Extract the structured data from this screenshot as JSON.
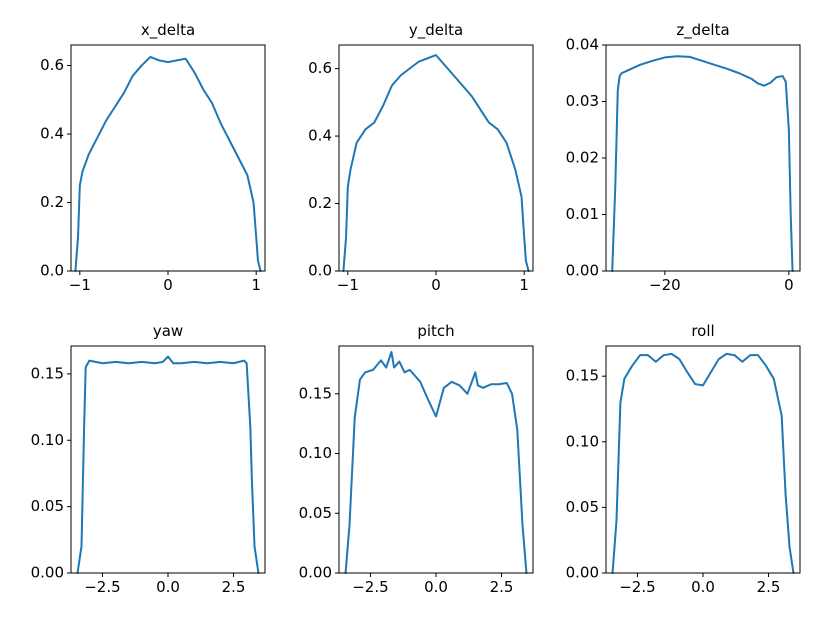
{
  "chart_data": [
    {
      "type": "line",
      "title": "x_delta",
      "xlim": [
        -1.1,
        1.1
      ],
      "ylim": [
        0.0,
        0.66
      ],
      "xticks": [
        -1,
        0,
        1
      ],
      "xtick_labels": [
        "−1",
        "0",
        "1"
      ],
      "yticks": [
        0.0,
        0.2,
        0.4,
        0.6
      ],
      "ytick_labels": [
        "0.0",
        "0.2",
        "0.4",
        "0.6"
      ],
      "color": "#1f77b4",
      "series": [
        {
          "x": [
            -1.05,
            -1.02,
            -1.0,
            -0.97,
            -0.9,
            -0.8,
            -0.7,
            -0.6,
            -0.5,
            -0.4,
            -0.3,
            -0.2,
            -0.1,
            0.0,
            0.1,
            0.2,
            0.3,
            0.4,
            0.5,
            0.6,
            0.7,
            0.8,
            0.9,
            0.97,
            1.0,
            1.02,
            1.05
          ],
          "y": [
            0.0,
            0.1,
            0.25,
            0.29,
            0.34,
            0.39,
            0.44,
            0.48,
            0.52,
            0.57,
            0.6,
            0.625,
            0.615,
            0.61,
            0.615,
            0.62,
            0.58,
            0.53,
            0.49,
            0.43,
            0.38,
            0.33,
            0.28,
            0.2,
            0.1,
            0.03,
            0.0
          ]
        }
      ]
    },
    {
      "type": "line",
      "title": "y_delta",
      "xlim": [
        -1.1,
        1.1
      ],
      "ylim": [
        0.0,
        0.67
      ],
      "xticks": [
        -1,
        0,
        1
      ],
      "xtick_labels": [
        "−1",
        "0",
        "1"
      ],
      "yticks": [
        0.0,
        0.2,
        0.4,
        0.6
      ],
      "ytick_labels": [
        "0.0",
        "0.2",
        "0.4",
        "0.6"
      ],
      "color": "#1f77b4",
      "series": [
        {
          "x": [
            -1.05,
            -1.02,
            -1.0,
            -0.97,
            -0.9,
            -0.8,
            -0.7,
            -0.6,
            -0.5,
            -0.4,
            -0.3,
            -0.2,
            -0.1,
            0.0,
            0.1,
            0.2,
            0.3,
            0.4,
            0.5,
            0.6,
            0.7,
            0.8,
            0.9,
            0.97,
            1.0,
            1.02,
            1.05
          ],
          "y": [
            0.0,
            0.1,
            0.25,
            0.3,
            0.38,
            0.42,
            0.44,
            0.49,
            0.55,
            0.58,
            0.6,
            0.62,
            0.63,
            0.64,
            0.61,
            0.58,
            0.55,
            0.52,
            0.48,
            0.44,
            0.42,
            0.38,
            0.3,
            0.22,
            0.1,
            0.03,
            0.0
          ]
        }
      ]
    },
    {
      "type": "line",
      "title": "z_delta",
      "xlim": [
        -29.5,
        1.8
      ],
      "ylim": [
        0.0,
        0.04
      ],
      "xticks": [
        -20,
        0
      ],
      "xtick_labels": [
        "−20",
        "0"
      ],
      "yticks": [
        0.0,
        0.01,
        0.02,
        0.03,
        0.04
      ],
      "ytick_labels": [
        "0.00",
        "0.01",
        "0.02",
        "0.03",
        "0.04"
      ],
      "color": "#1f77b4",
      "series": [
        {
          "x": [
            -28.5,
            -28.0,
            -27.6,
            -27.3,
            -27.0,
            -26.0,
            -24.0,
            -22.0,
            -20.0,
            -18.0,
            -16.0,
            -14.0,
            -12.0,
            -10.0,
            -8.0,
            -6.0,
            -5.0,
            -4.0,
            -3.0,
            -2.0,
            -1.0,
            -0.5,
            0.0,
            0.3,
            0.6
          ],
          "y": [
            0.0,
            0.015,
            0.032,
            0.0345,
            0.035,
            0.0355,
            0.0365,
            0.0372,
            0.0378,
            0.038,
            0.0379,
            0.0372,
            0.0365,
            0.0358,
            0.035,
            0.034,
            0.0332,
            0.0328,
            0.0333,
            0.0343,
            0.0345,
            0.0335,
            0.025,
            0.01,
            0.0
          ]
        }
      ]
    },
    {
      "type": "line",
      "title": "yaw",
      "xlim": [
        -3.7,
        3.7
      ],
      "ylim": [
        0.0,
        0.171
      ],
      "xticks": [
        -2.5,
        0.0,
        2.5
      ],
      "xtick_labels": [
        "−2.5",
        "0.0",
        "2.5"
      ],
      "yticks": [
        0.0,
        0.05,
        0.1,
        0.15
      ],
      "ytick_labels": [
        "0.00",
        "0.05",
        "0.10",
        "0.15"
      ],
      "color": "#1f77b4",
      "series": [
        {
          "x": [
            -3.45,
            -3.3,
            -3.2,
            -3.14,
            -3.0,
            -2.5,
            -2.0,
            -1.5,
            -1.0,
            -0.5,
            -0.2,
            0.0,
            0.2,
            0.5,
            1.0,
            1.5,
            2.0,
            2.5,
            2.9,
            3.0,
            3.14,
            3.2,
            3.3,
            3.45
          ],
          "y": [
            0.0,
            0.02,
            0.11,
            0.155,
            0.16,
            0.158,
            0.159,
            0.158,
            0.159,
            0.158,
            0.159,
            0.163,
            0.158,
            0.158,
            0.159,
            0.158,
            0.159,
            0.158,
            0.16,
            0.158,
            0.11,
            0.07,
            0.02,
            0.0
          ]
        }
      ]
    },
    {
      "type": "line",
      "title": "pitch",
      "xlim": [
        -3.7,
        3.7
      ],
      "ylim": [
        0.0,
        0.19
      ],
      "xticks": [
        -2.5,
        0.0,
        2.5
      ],
      "xtick_labels": [
        "−2.5",
        "0.0",
        "2.5"
      ],
      "yticks": [
        0.0,
        0.05,
        0.1,
        0.15
      ],
      "ytick_labels": [
        "0.00",
        "0.05",
        "0.10",
        "0.15"
      ],
      "color": "#1f77b4",
      "series": [
        {
          "x": [
            -3.45,
            -3.3,
            -3.1,
            -2.9,
            -2.7,
            -2.4,
            -2.1,
            -1.9,
            -1.7,
            -1.6,
            -1.4,
            -1.2,
            -1.0,
            -0.6,
            -0.3,
            0.0,
            0.3,
            0.6,
            0.9,
            1.2,
            1.5,
            1.6,
            1.8,
            2.1,
            2.4,
            2.7,
            2.9,
            3.1,
            3.3,
            3.45
          ],
          "y": [
            0.0,
            0.04,
            0.13,
            0.162,
            0.168,
            0.17,
            0.178,
            0.172,
            0.185,
            0.172,
            0.177,
            0.168,
            0.17,
            0.16,
            0.145,
            0.131,
            0.155,
            0.16,
            0.157,
            0.15,
            0.168,
            0.157,
            0.155,
            0.158,
            0.158,
            0.159,
            0.15,
            0.12,
            0.04,
            0.0
          ]
        }
      ]
    },
    {
      "type": "line",
      "title": "roll",
      "xlim": [
        -3.7,
        3.7
      ],
      "ylim": [
        0.0,
        0.173
      ],
      "xticks": [
        -2.5,
        0.0,
        2.5
      ],
      "xtick_labels": [
        "−2.5",
        "0.0",
        "2.5"
      ],
      "yticks": [
        0.0,
        0.05,
        0.1,
        0.15
      ],
      "ytick_labels": [
        "0.00",
        "0.05",
        "0.10",
        "0.15"
      ],
      "color": "#1f77b4",
      "series": [
        {
          "x": [
            -3.45,
            -3.3,
            -3.15,
            -3.0,
            -2.7,
            -2.4,
            -2.1,
            -1.8,
            -1.5,
            -1.2,
            -0.9,
            -0.6,
            -0.3,
            0.0,
            0.3,
            0.6,
            0.9,
            1.2,
            1.5,
            1.8,
            2.1,
            2.4,
            2.7,
            3.0,
            3.15,
            3.3,
            3.45
          ],
          "y": [
            0.0,
            0.04,
            0.13,
            0.148,
            0.158,
            0.166,
            0.166,
            0.161,
            0.166,
            0.167,
            0.163,
            0.153,
            0.144,
            0.143,
            0.153,
            0.163,
            0.167,
            0.166,
            0.161,
            0.166,
            0.166,
            0.158,
            0.148,
            0.12,
            0.06,
            0.02,
            0.0
          ]
        }
      ]
    }
  ]
}
